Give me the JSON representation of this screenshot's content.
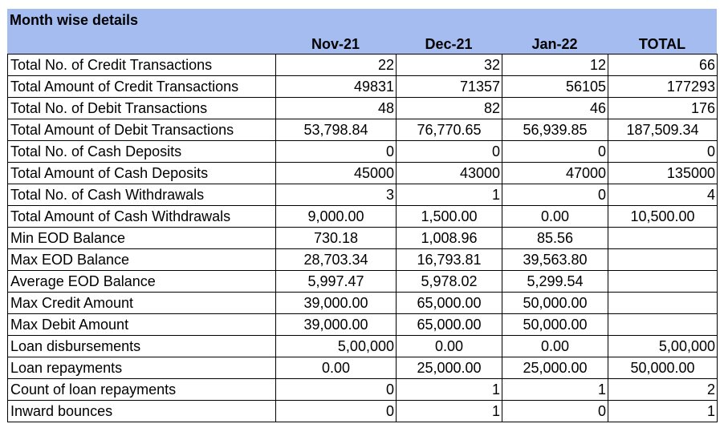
{
  "title": "Month wise details",
  "columns": [
    "Nov-21",
    "Dec-21",
    "Jan-22",
    "TOTAL"
  ],
  "rows": [
    {
      "label": "Total No. of Credit Transactions",
      "cells": [
        {
          "v": "22",
          "a": "num"
        },
        {
          "v": "32",
          "a": "num"
        },
        {
          "v": "12",
          "a": "num"
        },
        {
          "v": "66",
          "a": "num"
        }
      ]
    },
    {
      "label": "Total Amount of Credit Transactions",
      "cells": [
        {
          "v": "49831",
          "a": "num"
        },
        {
          "v": "71357",
          "a": "num"
        },
        {
          "v": "56105",
          "a": "num"
        },
        {
          "v": "177293",
          "a": "num"
        }
      ]
    },
    {
      "label": "Total No. of Debit Transactions",
      "cells": [
        {
          "v": "48",
          "a": "num"
        },
        {
          "v": "82",
          "a": "num"
        },
        {
          "v": "46",
          "a": "num"
        },
        {
          "v": "176",
          "a": "num"
        }
      ]
    },
    {
      "label": "Total Amount of Debit Transactions",
      "cells": [
        {
          "v": "53,798.84",
          "a": "ctr"
        },
        {
          "v": "76,770.65",
          "a": "ctr"
        },
        {
          "v": "56,939.85",
          "a": "ctr"
        },
        {
          "v": "187,509.34",
          "a": "ctr"
        }
      ]
    },
    {
      "label": "Total No. of Cash Deposits",
      "cells": [
        {
          "v": "0",
          "a": "num"
        },
        {
          "v": "0",
          "a": "num"
        },
        {
          "v": "0",
          "a": "num"
        },
        {
          "v": "0",
          "a": "num"
        }
      ]
    },
    {
      "label": "Total Amount of Cash Deposits",
      "cells": [
        {
          "v": "45000",
          "a": "num"
        },
        {
          "v": "43000",
          "a": "num"
        },
        {
          "v": "47000",
          "a": "num"
        },
        {
          "v": "135000",
          "a": "num"
        }
      ]
    },
    {
      "label": "Total No. of Cash Withdrawals",
      "cells": [
        {
          "v": "3",
          "a": "num"
        },
        {
          "v": "1",
          "a": "num"
        },
        {
          "v": "0",
          "a": "num"
        },
        {
          "v": "4",
          "a": "num"
        }
      ]
    },
    {
      "label": "Total Amount of Cash Withdrawals",
      "cells": [
        {
          "v": "9,000.00",
          "a": "ctr"
        },
        {
          "v": "1,500.00",
          "a": "ctr"
        },
        {
          "v": "0.00",
          "a": "ctr"
        },
        {
          "v": "10,500.00",
          "a": "ctr"
        }
      ]
    },
    {
      "label": "Min EOD Balance",
      "cells": [
        {
          "v": "730.18",
          "a": "ctr"
        },
        {
          "v": "1,008.96",
          "a": "ctr"
        },
        {
          "v": "85.56",
          "a": "ctr"
        },
        {
          "v": "",
          "a": "ctr"
        }
      ]
    },
    {
      "label": "Max EOD Balance",
      "cells": [
        {
          "v": "28,703.34",
          "a": "ctr"
        },
        {
          "v": "16,793.81",
          "a": "ctr"
        },
        {
          "v": "39,563.80",
          "a": "ctr"
        },
        {
          "v": "",
          "a": "ctr"
        }
      ]
    },
    {
      "label": "Average EOD Balance",
      "cells": [
        {
          "v": "5,997.47",
          "a": "ctr"
        },
        {
          "v": "5,978.02",
          "a": "ctr"
        },
        {
          "v": "5,299.54",
          "a": "ctr"
        },
        {
          "v": "",
          "a": "ctr"
        }
      ]
    },
    {
      "label": "Max Credit Amount",
      "cells": [
        {
          "v": "39,000.00",
          "a": "ctr"
        },
        {
          "v": "65,000.00",
          "a": "ctr"
        },
        {
          "v": "50,000.00",
          "a": "ctr"
        },
        {
          "v": "",
          "a": "ctr"
        }
      ]
    },
    {
      "label": "Max Debit Amount",
      "cells": [
        {
          "v": "39,000.00",
          "a": "ctr"
        },
        {
          "v": "65,000.00",
          "a": "ctr"
        },
        {
          "v": "50,000.00",
          "a": "ctr"
        },
        {
          "v": "",
          "a": "ctr"
        }
      ]
    },
    {
      "label": "Loan disbursements",
      "cells": [
        {
          "v": "5,00,000",
          "a": "num"
        },
        {
          "v": "0.00",
          "a": "ctr"
        },
        {
          "v": "0.00",
          "a": "ctr"
        },
        {
          "v": "5,00,000",
          "a": "num"
        }
      ]
    },
    {
      "label": "Loan repayments",
      "cells": [
        {
          "v": "0.00",
          "a": "ctr"
        },
        {
          "v": "25,000.00",
          "a": "ctr"
        },
        {
          "v": "25,000.00",
          "a": "ctr"
        },
        {
          "v": "50,000.00",
          "a": "ctr"
        }
      ]
    },
    {
      "label": "Count of loan repayments",
      "cells": [
        {
          "v": "0",
          "a": "num"
        },
        {
          "v": "1",
          "a": "num"
        },
        {
          "v": "1",
          "a": "num"
        },
        {
          "v": "2",
          "a": "num"
        }
      ]
    },
    {
      "label": "Inward bounces",
      "cells": [
        {
          "v": "0",
          "a": "num"
        },
        {
          "v": "1",
          "a": "num"
        },
        {
          "v": "0",
          "a": "num"
        },
        {
          "v": "1",
          "a": "num"
        }
      ]
    }
  ],
  "colors": {
    "header_bg": "#a4bcf0",
    "border": "#000000"
  }
}
